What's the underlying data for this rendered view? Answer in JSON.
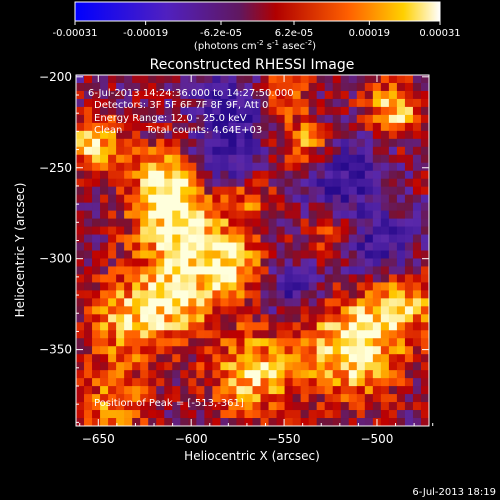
{
  "chart_data": {
    "type": "heatmap",
    "title": "Reconstructed RHESSI Image",
    "xlabel": "Heliocentric X (arcsec)",
    "ylabel": "Heliocentric Y (arcsec)",
    "xlim": [
      -662,
      -472
    ],
    "ylim": [
      -392,
      -199
    ],
    "x_ticks": [
      -650,
      -600,
      -550,
      -500
    ],
    "y_ticks": [
      -200,
      -250,
      -300,
      -350
    ],
    "colorbar": {
      "range": [
        -0.00031,
        0.00031
      ],
      "tick_values": [
        -0.00031,
        -0.00019,
        -6.2e-05,
        6.2e-05,
        0.00019,
        0.00031
      ],
      "tick_labels": [
        "-0.00031",
        "-0.00019",
        "-6.2e-05",
        "6.2e-05",
        "0.00019",
        "0.00031"
      ],
      "unit_prefix": "(photons cm",
      "unit_exp1": "-2",
      "unit_mid": " s",
      "unit_exp2": "-1",
      "unit_mid2": " asec",
      "unit_exp3": "-2",
      "unit_suffix": ")"
    },
    "annotations": {
      "time_range": "6-Jul-2013 14:24:36.000 to 14:27:50.000",
      "detectors": "Detectors: 3F 5F 6F 7F 8F 9F, Att 0",
      "energy": "Energy Range: 12.0 - 25.0 keV",
      "method": "Clean",
      "counts": "Total counts: 4.64E+03",
      "peak": "Position of Peak = [-513,-361]"
    },
    "timestamp": "6-Jul-2013 18:19",
    "grid": false,
    "legend": "colorbar-top"
  }
}
